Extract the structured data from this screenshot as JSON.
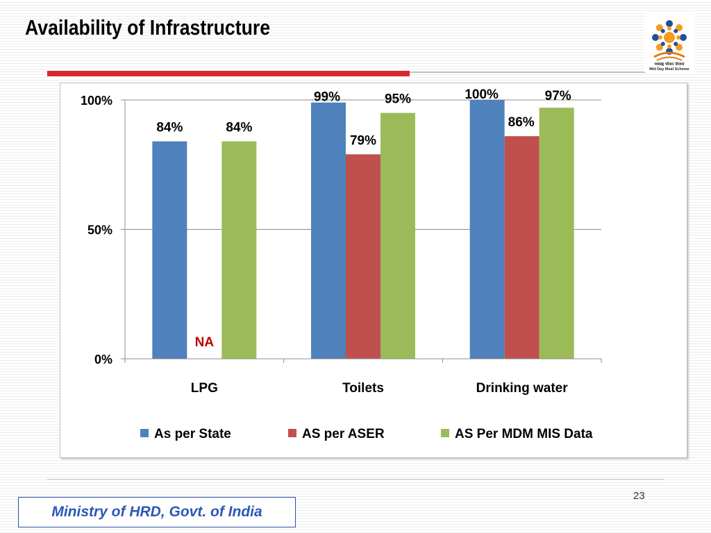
{
  "slide": {
    "title": "Availability of Infrastructure",
    "footer": "Ministry of HRD, Govt. of India",
    "page_number": "23",
    "colors": {
      "accent_red": "#d9262b",
      "footer_blue": "#2d57b8"
    }
  },
  "logo": {
    "icon": "mid-day-meal-logo",
    "text_line1": "मध्याह्न भोजन योजना",
    "text_line2": "Mid Day Meal Scheme"
  },
  "chart_data": {
    "type": "bar",
    "title": "",
    "xlabel": "",
    "ylabel": "",
    "categories": [
      "LPG",
      "Toilets",
      "Drinking water"
    ],
    "series": [
      {
        "name": "As per State",
        "color": "#4f81bd",
        "values": [
          84,
          99,
          100
        ],
        "labels": [
          "84%",
          "99%",
          "100%"
        ]
      },
      {
        "name": "AS per ASER",
        "color": "#c0504d",
        "values": [
          null,
          79,
          86
        ],
        "labels": [
          "NA",
          "79%",
          "86%"
        ]
      },
      {
        "name": "AS Per MDM MIS Data",
        "color": "#9bbb59",
        "values": [
          84,
          95,
          97
        ],
        "labels": [
          "84%",
          "95%",
          "97%"
        ]
      }
    ],
    "ylim": [
      0,
      100
    ],
    "yticks": [
      0,
      50,
      100
    ],
    "ytick_labels": [
      "0%",
      "50%",
      "100%"
    ],
    "grid": true,
    "legend": "bottom"
  }
}
